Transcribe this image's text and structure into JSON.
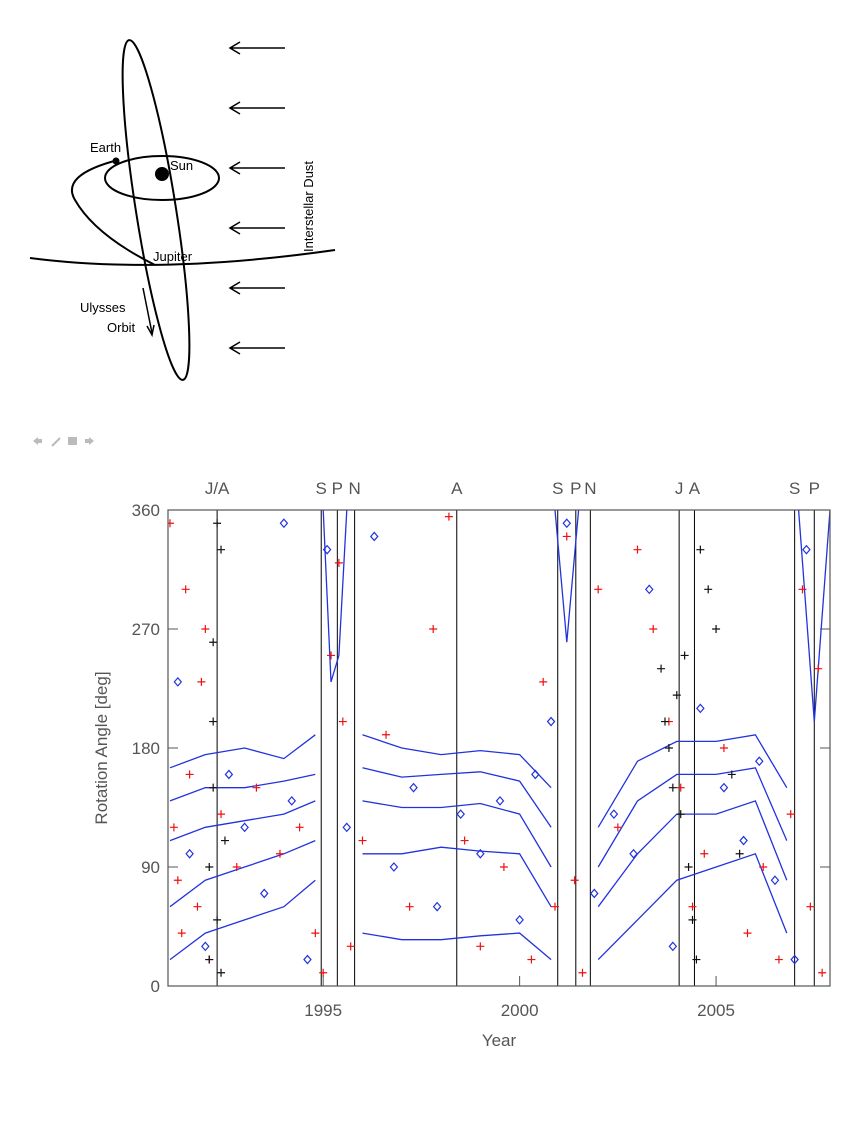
{
  "diagram": {
    "earth": "Earth",
    "sun": "Sun",
    "jupiter": "Jupiter",
    "dust": "Interstellar Dust",
    "ulysses": "Ulysses",
    "orbit": "Orbit"
  },
  "chart_data": {
    "type": "scatter",
    "xlabel": "Year",
    "ylabel": "Rotation Angle [deg]",
    "xlim": [
      1991.05,
      2007.9
    ],
    "ylim": [
      0,
      360
    ],
    "xticks": [
      1995,
      2000,
      2005
    ],
    "yticks": [
      0,
      90,
      180,
      270,
      360
    ],
    "event_lines": [
      {
        "x": 1992.3,
        "label": "J/A"
      },
      {
        "x": 1994.95,
        "label": "S"
      },
      {
        "x": 1995.36,
        "label": "P"
      },
      {
        "x": 1995.8,
        "label": "N"
      },
      {
        "x": 1998.4,
        "label": "A"
      },
      {
        "x": 2000.97,
        "label": "S"
      },
      {
        "x": 2001.43,
        "label": "P"
      },
      {
        "x": 2001.8,
        "label": "N"
      },
      {
        "x": 2004.06,
        "label": "J"
      },
      {
        "x": 2004.45,
        "label": "A"
      },
      {
        "x": 2007.0,
        "label": "S"
      },
      {
        "x": 2007.5,
        "label": "P"
      }
    ],
    "series": [
      {
        "marker": "plus",
        "color": "#ee1111",
        "x": [
          1991.1,
          1991.2,
          1991.3,
          1991.4,
          1991.5,
          1991.6,
          1991.8,
          1991.9,
          1992.0,
          1992.1,
          1992.4,
          1992.8,
          1993.3,
          1993.9,
          1994.4,
          1994.8,
          1995.0,
          1995.2,
          1995.4,
          1995.5,
          1995.7,
          1996.0,
          1996.6,
          1997.2,
          1997.8,
          1998.2,
          1998.6,
          1999.0,
          1999.6,
          2000.3,
          2000.6,
          2000.9,
          2001.2,
          2001.4,
          2001.6,
          2002.0,
          2002.5,
          2003.0,
          2003.4,
          2003.8,
          2004.1,
          2004.4,
          2004.7,
          2005.2,
          2005.8,
          2006.2,
          2006.6,
          2006.9,
          2007.2,
          2007.4,
          2007.6,
          2007.7
        ],
        "values": [
          350,
          120,
          80,
          40,
          300,
          160,
          60,
          230,
          270,
          20,
          130,
          90,
          150,
          100,
          120,
          40,
          10,
          250,
          320,
          200,
          30,
          110,
          190,
          60,
          270,
          355,
          110,
          30,
          90,
          20,
          230,
          60,
          340,
          80,
          10,
          300,
          120,
          330,
          270,
          200,
          150,
          60,
          100,
          180,
          40,
          90,
          20,
          130,
          300,
          60,
          240,
          10
        ]
      },
      {
        "marker": "plus",
        "color": "#111111",
        "x": [
          1992.1,
          1992.1,
          1992.2,
          1992.2,
          1992.3,
          1992.3,
          1992.4,
          1992.4,
          1992.5,
          1992.2,
          2003.6,
          2003.7,
          2003.8,
          2003.9,
          2004.0,
          2004.1,
          2004.3,
          2004.4,
          2004.5,
          2004.6,
          2004.8,
          2005.0,
          2005.4,
          2005.6,
          2004.2
        ],
        "values": [
          20,
          90,
          200,
          150,
          50,
          350,
          10,
          330,
          110,
          260,
          240,
          200,
          180,
          150,
          220,
          130,
          90,
          50,
          20,
          330,
          300,
          270,
          160,
          100,
          250
        ]
      },
      {
        "marker": "diamond",
        "color": "#2233dd",
        "x": [
          1991.3,
          1991.6,
          1992.0,
          1992.6,
          1993.0,
          1993.5,
          1994.0,
          1994.2,
          1994.6,
          1995.1,
          1995.6,
          1996.3,
          1996.8,
          1997.3,
          1997.9,
          1998.5,
          1999.0,
          1999.5,
          2000.0,
          2000.4,
          2000.8,
          2001.2,
          2001.9,
          2002.4,
          2002.9,
          2003.3,
          2003.9,
          2004.6,
          2005.2,
          2005.7,
          2006.1,
          2006.5,
          2007.0,
          2007.3
        ],
        "values": [
          230,
          100,
          30,
          160,
          120,
          70,
          350,
          140,
          20,
          330,
          120,
          340,
          90,
          150,
          60,
          130,
          100,
          140,
          50,
          160,
          200,
          350,
          70,
          130,
          100,
          300,
          30,
          210,
          150,
          110,
          170,
          80,
          20,
          330
        ]
      },
      {
        "marker": "line",
        "color": "#2233dd",
        "x": [
          1991.1,
          1992,
          1993,
          1994,
          1994.8,
          1995.3,
          1996,
          1997,
          1998,
          1999,
          2000,
          2000.8
        ],
        "values": [
          165,
          175,
          180,
          172,
          190,
          null,
          190,
          180,
          175,
          178,
          175,
          150
        ]
      },
      {
        "marker": "line",
        "color": "#2233dd",
        "x": [
          1991.1,
          1992,
          1993,
          1994,
          1994.8,
          1995.3,
          1996,
          1997,
          1998,
          1999,
          2000,
          2000.8
        ],
        "values": [
          140,
          150,
          150,
          155,
          160,
          null,
          165,
          158,
          160,
          162,
          155,
          120
        ]
      },
      {
        "marker": "line",
        "color": "#2233dd",
        "x": [
          1991.1,
          1992,
          1993,
          1994,
          1994.8,
          1995.3,
          1996,
          1997,
          1998,
          1999,
          2000,
          2000.8
        ],
        "values": [
          110,
          120,
          125,
          130,
          140,
          null,
          140,
          135,
          135,
          138,
          130,
          90
        ]
      },
      {
        "marker": "line",
        "color": "#2233dd",
        "x": [
          1991.1,
          1992,
          1993,
          1994,
          1994.8,
          1995.3,
          1996,
          1997,
          1998,
          1999,
          2000,
          2000.8
        ],
        "values": [
          60,
          80,
          90,
          100,
          110,
          null,
          100,
          100,
          105,
          102,
          100,
          60
        ]
      },
      {
        "marker": "line",
        "color": "#2233dd",
        "x": [
          1991.1,
          1992,
          1993,
          1994,
          1994.8,
          1995.3,
          1996,
          1997,
          1998,
          1999,
          2000,
          2000.8
        ],
        "values": [
          20,
          40,
          50,
          60,
          80,
          null,
          40,
          35,
          35,
          38,
          40,
          20
        ]
      },
      {
        "marker": "line",
        "color": "#2233dd",
        "x": [
          2002,
          2003,
          2004,
          2005,
          2006,
          2006.8
        ],
        "values": [
          120,
          170,
          185,
          185,
          190,
          150
        ]
      },
      {
        "marker": "line",
        "color": "#2233dd",
        "x": [
          2002,
          2003,
          2004,
          2005,
          2006,
          2006.8
        ],
        "values": [
          90,
          140,
          160,
          160,
          165,
          110
        ]
      },
      {
        "marker": "line",
        "color": "#2233dd",
        "x": [
          2002,
          2003,
          2004,
          2005,
          2006,
          2006.8
        ],
        "values": [
          60,
          100,
          130,
          130,
          140,
          80
        ]
      },
      {
        "marker": "line",
        "color": "#2233dd",
        "x": [
          2002,
          2003,
          2004,
          2005,
          2006,
          2006.8
        ],
        "values": [
          20,
          50,
          80,
          90,
          100,
          40
        ]
      },
      {
        "marker": "line",
        "color": "#2233dd",
        "x": [
          1995.0,
          1995.2,
          1995.4,
          1995.6
        ],
        "values": [
          360,
          230,
          250,
          360
        ]
      },
      {
        "marker": "line",
        "color": "#2233dd",
        "x": [
          2000.9,
          2001.2,
          2001.5
        ],
        "values": [
          360,
          260,
          360
        ]
      },
      {
        "marker": "line",
        "color": "#2233dd",
        "x": [
          2007.1,
          2007.5,
          2007.9
        ],
        "values": [
          360,
          200,
          360
        ]
      }
    ]
  }
}
